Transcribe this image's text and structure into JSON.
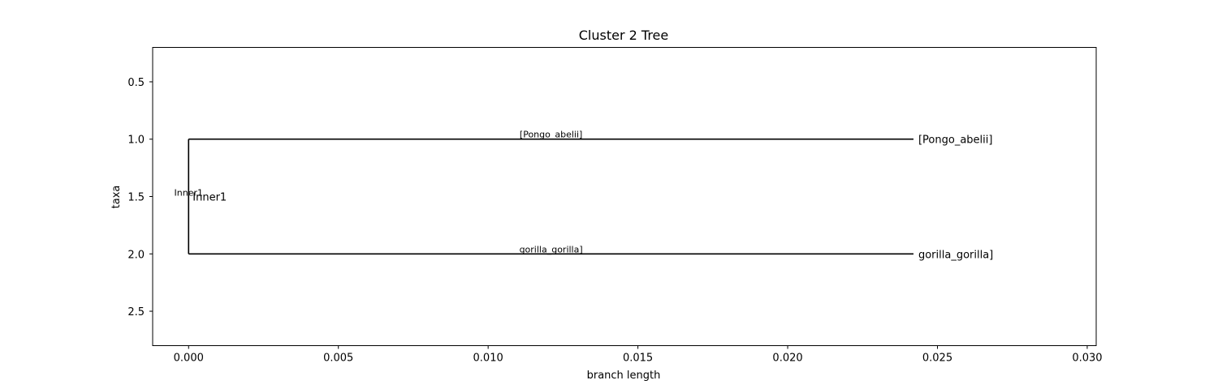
{
  "chart_data": {
    "type": "phylogenetic-tree",
    "title": "Cluster 2 Tree",
    "xlabel": "branch length",
    "ylabel": "taxa",
    "xlim": [
      -0.0012,
      0.0303
    ],
    "ylim": [
      2.8,
      0.2
    ],
    "xticks": [
      0.0,
      0.005,
      0.01,
      0.015,
      0.02,
      0.025,
      0.03
    ],
    "xtick_labels": [
      "0.000",
      "0.005",
      "0.010",
      "0.015",
      "0.020",
      "0.025",
      "0.030"
    ],
    "yticks": [
      0.5,
      1.0,
      1.5,
      2.0,
      2.5
    ],
    "ytick_labels": [
      "0.5",
      "1.0",
      "1.5",
      "2.0",
      "2.5"
    ],
    "grid": false,
    "inner_node": {
      "name": "Inner1",
      "x": 0.0,
      "y": 1.5,
      "clade_label": "Inner1"
    },
    "leaves": [
      {
        "name": "[Pongo_abelii]",
        "x": 0.0242,
        "y": 1.0,
        "branch_label": "[Pongo_abelii]"
      },
      {
        "name": "gorilla_gorilla]",
        "x": 0.0242,
        "y": 2.0,
        "branch_label": "gorilla_gorilla]"
      }
    ],
    "line_color": "#000000"
  }
}
